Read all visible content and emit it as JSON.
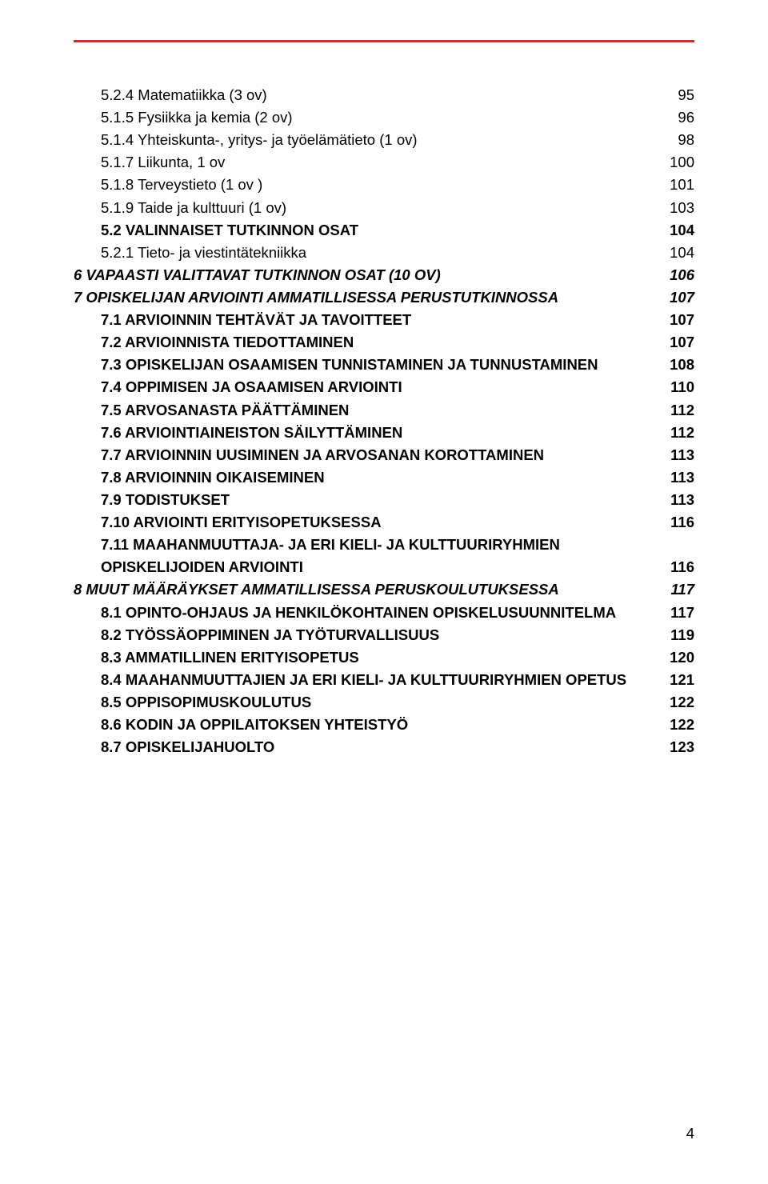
{
  "colors": {
    "topbar": "#b73a2e",
    "text": "#000000",
    "background": "#ffffff"
  },
  "typography": {
    "font_family": "Arial, Helvetica, sans-serif",
    "body_size_pt": 14,
    "line_height": 1.52
  },
  "page_number": "4",
  "toc": [
    {
      "label": "5.2.4 Matematiikka (3 ov)",
      "page": "95",
      "indent": 1,
      "bold": false,
      "italic": false
    },
    {
      "label": "5.1.5 Fysiikka ja kemia (2 ov)",
      "page": "96",
      "indent": 1,
      "bold": false,
      "italic": false
    },
    {
      "label": "5.1.4 Yhteiskunta-, yritys- ja työelämätieto (1 ov)",
      "page": "98",
      "indent": 1,
      "bold": false,
      "italic": false
    },
    {
      "label": "5.1.7 Liikunta, 1 ov",
      "page": "100",
      "indent": 1,
      "bold": false,
      "italic": false
    },
    {
      "label": "5.1.8 Terveystieto (1 ov )",
      "page": "101",
      "indent": 1,
      "bold": false,
      "italic": false
    },
    {
      "label": "5.1.9 Taide ja kulttuuri (1 ov)",
      "page": "103",
      "indent": 1,
      "bold": false,
      "italic": false
    },
    {
      "label": "5.2 VALINNAISET TUTKINNON OSAT",
      "page": "104",
      "indent": 1,
      "bold": true,
      "italic": false
    },
    {
      "label": "5.2.1 Tieto- ja viestintätekniikka",
      "page": "104",
      "indent": 1,
      "bold": false,
      "italic": false
    },
    {
      "label": "6 VAPAASTI VALITTAVAT TUTKINNON OSAT (10 OV)",
      "page": "106",
      "indent": 2,
      "bold": true,
      "italic": true
    },
    {
      "label": "7 OPISKELIJAN ARVIOINTI AMMATILLISESSA PERUSTUTKINNOSSA",
      "page": "107",
      "indent": 2,
      "bold": true,
      "italic": true
    },
    {
      "label": "7.1 ARVIOINNIN TEHTÄVÄT JA TAVOITTEET",
      "page": "107",
      "indent": 1,
      "bold": true,
      "italic": false
    },
    {
      "label": "7.2 ARVIOINNISTA TIEDOTTAMINEN",
      "page": "107",
      "indent": 1,
      "bold": true,
      "italic": false
    },
    {
      "label": "7.3 OPISKELIJAN OSAAMISEN TUNNISTAMINEN JA TUNNUSTAMINEN",
      "page": "108",
      "indent": 1,
      "bold": true,
      "italic": false
    },
    {
      "label": "7.4 OPPIMISEN JA OSAAMISEN ARVIOINTI",
      "page": "110",
      "indent": 1,
      "bold": true,
      "italic": false
    },
    {
      "label": "7.5 ARVOSANASTA PÄÄTTÄMINEN",
      "page": "112",
      "indent": 1,
      "bold": true,
      "italic": false
    },
    {
      "label": "7.6 ARVIOINTIAINEISTON SÄILYTTÄMINEN",
      "page": "112",
      "indent": 1,
      "bold": true,
      "italic": false
    },
    {
      "label": "7.7 ARVIOINNIN UUSIMINEN JA ARVOSANAN KOROTTAMINEN",
      "page": "113",
      "indent": 1,
      "bold": true,
      "italic": false
    },
    {
      "label": "7.8 ARVIOINNIN OIKAISEMINEN",
      "page": "113",
      "indent": 1,
      "bold": true,
      "italic": false
    },
    {
      "label": "7.9 TODISTUKSET",
      "page": "113",
      "indent": 1,
      "bold": true,
      "italic": false
    },
    {
      "label": "7.10 ARVIOINTI ERITYISOPETUKSESSA",
      "page": "116",
      "indent": 1,
      "bold": true,
      "italic": false
    },
    {
      "label": "7.11 MAAHANMUUTTAJA- JA ERI KIELI- JA KULTTUURIRYHMIEN OPISKELIJOIDEN ARVIOINTI",
      "page": "116",
      "indent": 1,
      "bold": true,
      "italic": false,
      "wrap": true
    },
    {
      "label": "8 MUUT MÄÄRÄYKSET AMMATILLISESSA PERUSKOULUTUKSESSA",
      "page": "117",
      "indent": 2,
      "bold": true,
      "italic": true
    },
    {
      "label": "8.1 OPINTO-OHJAUS JA HENKILÖKOHTAINEN OPISKELUSUUNNITELMA",
      "page": "117",
      "indent": 1,
      "bold": true,
      "italic": false
    },
    {
      "label": "8.2 TYÖSSÄOPPIMINEN JA TYÖTURVALLISUUS",
      "page": "119",
      "indent": 1,
      "bold": true,
      "italic": false
    },
    {
      "label": "8.3 AMMATILLINEN ERITYISOPETUS",
      "page": "120",
      "indent": 1,
      "bold": true,
      "italic": false
    },
    {
      "label": "8.4 MAAHANMUUTTAJIEN JA ERI KIELI- JA KULTTUURIRYHMIEN OPETUS",
      "page": "121",
      "indent": 1,
      "bold": true,
      "italic": false
    },
    {
      "label": "8.5 OPPISOPIMUSKOULUTUS",
      "page": "122",
      "indent": 1,
      "bold": true,
      "italic": false
    },
    {
      "label": "8.6 KODIN JA OPPILAITOKSEN YHTEISTYÖ",
      "page": "122",
      "indent": 1,
      "bold": true,
      "italic": false
    },
    {
      "label": "8.7 OPISKELIJAHUOLTO",
      "page": "123",
      "indent": 1,
      "bold": true,
      "italic": false
    }
  ]
}
